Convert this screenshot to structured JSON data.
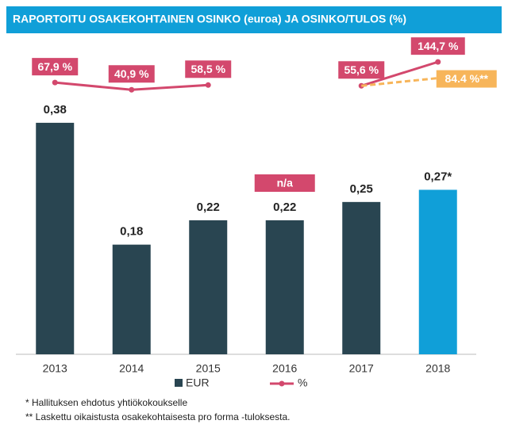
{
  "chart_data": {
    "type": "bar",
    "title": "RAPORTOITU OSAKEKOHTAINEN OSINKO (euroa) JA OSINKO/TULOS (%)",
    "categories": [
      "2013",
      "2014",
      "2015",
      "2016",
      "2017",
      "2018"
    ],
    "series": [
      {
        "name": "EUR",
        "type": "bar",
        "color": "#294551",
        "colors": [
          "#294551",
          "#294551",
          "#294551",
          "#294551",
          "#294551",
          "#109fd8"
        ],
        "values": [
          0.38,
          0.18,
          0.22,
          0.22,
          0.25,
          0.27
        ],
        "value_labels": [
          "0,38",
          "0,18",
          "0,22",
          "0,22",
          "0,25",
          "0,27*"
        ]
      },
      {
        "name": "%",
        "type": "line",
        "axis": "y2",
        "color": "#d3486d",
        "values": [
          67.9,
          40.9,
          58.5,
          null,
          55.6,
          144.7
        ],
        "value_labels": [
          "67,9 %",
          "40,9 %",
          "58,5 %",
          "n/a",
          "55,6 %",
          "144,7 %"
        ]
      },
      {
        "type": "line",
        "axis": "y2",
        "dashed": true,
        "color": "#f7b55a",
        "values": [
          null,
          null,
          null,
          null,
          55.6,
          84.4
        ],
        "value_labels": [
          null,
          null,
          null,
          null,
          null,
          "84.4 %**"
        ]
      }
    ],
    "ylim": [
      0,
      0.51
    ],
    "y2lim": [
      -945,
      213
    ],
    "notes": [
      "* Hallituksen ehdotus yhtiökokoukselle",
      "** Laskettu oikaistusta osakekohtaisesta pro forma -tuloksesta."
    ]
  }
}
